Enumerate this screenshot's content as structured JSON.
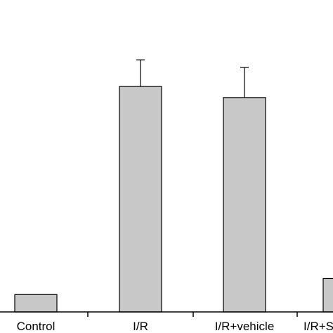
{
  "chart_data": {
    "type": "bar",
    "categories": [
      "Control",
      "I/R",
      "I/R+vehicle",
      "I/R+S"
    ],
    "values": [
      5.2,
      67.5,
      64.2,
      10
    ],
    "errors": [
      0,
      8,
      9,
      0
    ],
    "ylim": [
      0,
      85
    ],
    "colors": {
      "bar_fill": "#c8c8c8",
      "bar_stroke": "#000000",
      "axis": "#000000"
    },
    "grid": false,
    "legend": "none"
  }
}
